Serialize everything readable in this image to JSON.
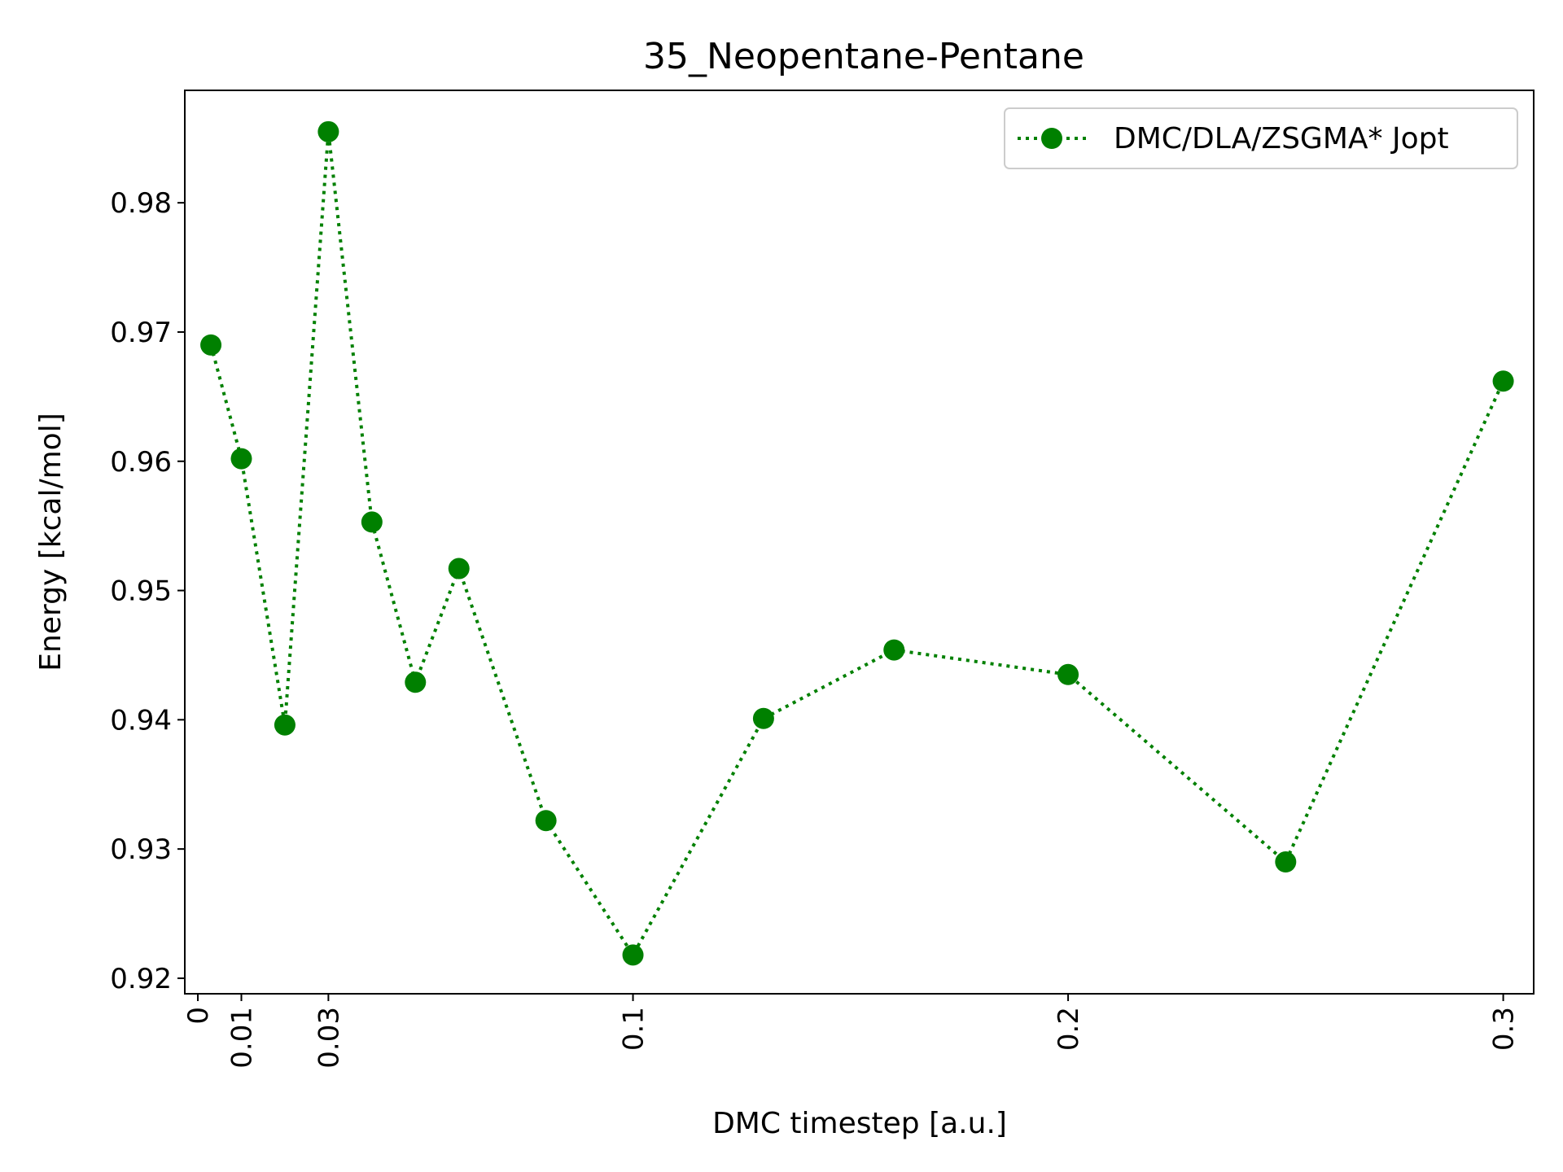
{
  "chart_data": {
    "type": "line",
    "title": "35_Neopentane-Pentane",
    "xlabel": "DMC timestep [a.u.]",
    "ylabel": "Energy [kcal/mol]",
    "xlim": [
      -0.003,
      0.307
    ],
    "ylim": [
      0.9188,
      0.9887
    ],
    "xticks": [
      0,
      0.01,
      0.03,
      0.1,
      0.2,
      0.3
    ],
    "xtick_labels": [
      "0",
      "0.01",
      "0.03",
      "0.1",
      "0.2",
      "0.3"
    ],
    "yticks": [
      0.92,
      0.93,
      0.94,
      0.95,
      0.96,
      0.97,
      0.98
    ],
    "ytick_labels": [
      "0.92",
      "0.93",
      "0.94",
      "0.95",
      "0.96",
      "0.97",
      "0.98"
    ],
    "grid": false,
    "legend_position": "top-right",
    "series": [
      {
        "name": "DMC/DLA/ZSGMA* Jopt",
        "color": "#008000",
        "linestyle": "dotted",
        "marker": "circle",
        "x": [
          0.003,
          0.01,
          0.02,
          0.03,
          0.04,
          0.05,
          0.06,
          0.08,
          0.1,
          0.13,
          0.16,
          0.2,
          0.25,
          0.3
        ],
        "y": [
          0.969,
          0.9602,
          0.9396,
          0.9855,
          0.9553,
          0.9429,
          0.9517,
          0.9322,
          0.9218,
          0.9401,
          0.9454,
          0.9435,
          0.929,
          0.9662
        ]
      }
    ]
  }
}
